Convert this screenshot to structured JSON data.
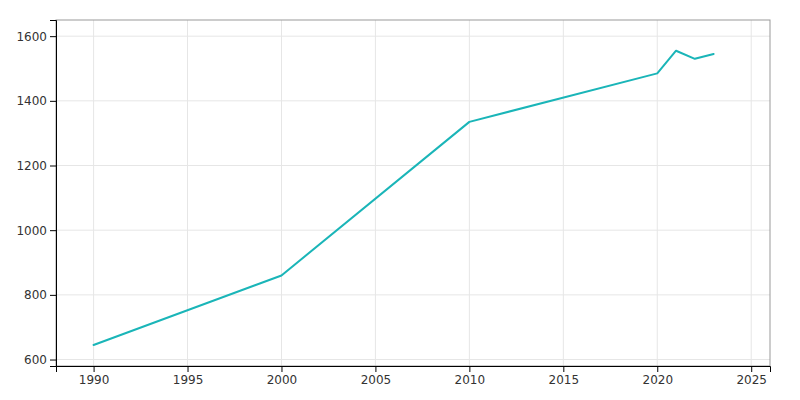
{
  "chart_data": {
    "type": "line",
    "x": [
      1990,
      2000,
      2010,
      2020,
      2021,
      2022,
      2023
    ],
    "values": [
      645,
      860,
      1335,
      1485,
      1555,
      1530,
      1545
    ],
    "color": "#1ab5b8",
    "xlim": [
      1988,
      2026
    ],
    "ylim": [
      580,
      1650
    ],
    "xticks": [
      1990,
      1995,
      2000,
      2005,
      2010,
      2015,
      2020,
      2025
    ],
    "yticks": [
      600,
      800,
      1000,
      1200,
      1400,
      1600
    ],
    "grid": true
  }
}
